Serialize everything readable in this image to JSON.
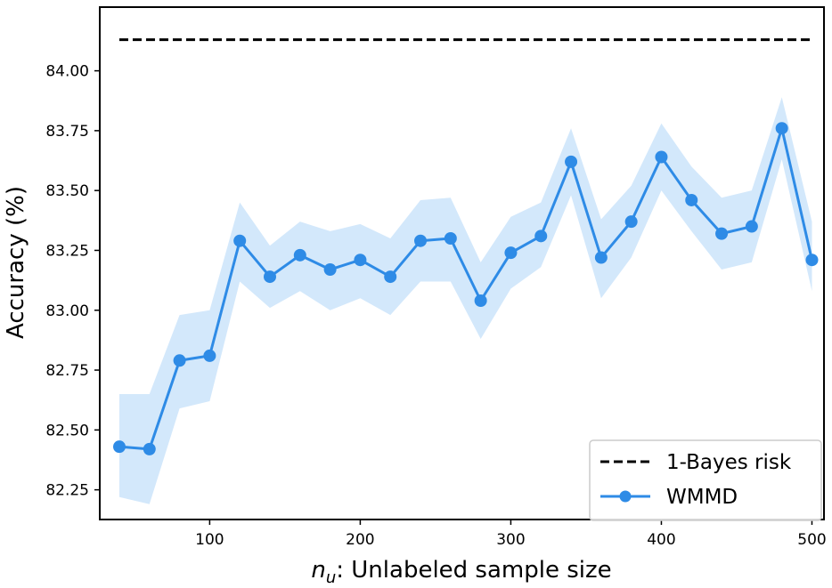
{
  "chart_data": {
    "type": "line",
    "title": "",
    "xlabel_var": "n",
    "xlabel_sub": "u",
    "xlabel_rest": ": Unlabeled sample size",
    "ylabel": "Accuracy (%)",
    "xlim": [
      27,
      508
    ],
    "ylim": [
      82.126,
      84.266
    ],
    "xticks": [
      100,
      200,
      300,
      400,
      500
    ],
    "yticks": [
      82.25,
      82.5,
      82.75,
      83.0,
      83.25,
      83.5,
      83.75,
      84.0
    ],
    "grid": false,
    "legend": "lower-right",
    "bayes": {
      "name": "1-Bayes risk",
      "value": 84.13,
      "x_range": [
        40,
        500
      ],
      "color": "#000000",
      "style": "dashed"
    },
    "series": [
      {
        "name": "WMMD",
        "color": "#2e8be6",
        "band_color": "#d3e8fb",
        "x": [
          40,
          60,
          80,
          100,
          120,
          140,
          160,
          180,
          200,
          220,
          240,
          260,
          280,
          300,
          320,
          340,
          360,
          380,
          400,
          420,
          440,
          460,
          480,
          500
        ],
        "y": [
          82.43,
          82.42,
          82.79,
          82.81,
          83.29,
          83.14,
          83.23,
          83.17,
          83.21,
          83.14,
          83.29,
          83.3,
          83.04,
          83.24,
          83.31,
          83.62,
          83.22,
          83.37,
          83.64,
          83.46,
          83.32,
          83.35,
          83.76,
          83.21
        ],
        "lower": [
          82.22,
          82.19,
          82.59,
          82.62,
          83.12,
          83.01,
          83.08,
          83.0,
          83.05,
          82.98,
          83.12,
          83.12,
          82.88,
          83.09,
          83.18,
          83.48,
          83.05,
          83.22,
          83.5,
          83.33,
          83.17,
          83.2,
          83.63,
          83.08
        ],
        "upper": [
          82.65,
          82.65,
          82.98,
          83.0,
          83.45,
          83.27,
          83.37,
          83.33,
          83.36,
          83.3,
          83.46,
          83.47,
          83.2,
          83.39,
          83.45,
          83.76,
          83.38,
          83.52,
          83.78,
          83.6,
          83.47,
          83.5,
          83.89,
          83.37
        ]
      }
    ]
  }
}
